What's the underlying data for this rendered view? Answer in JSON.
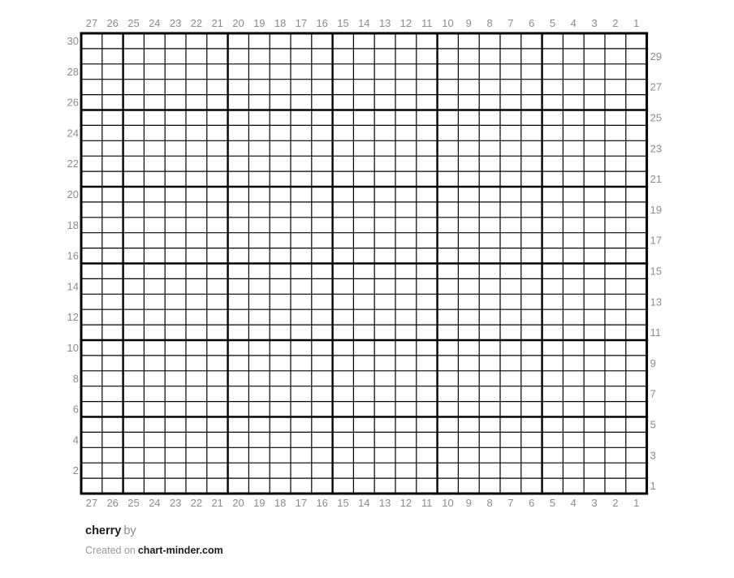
{
  "chart_data": {
    "type": "heatmap",
    "title": "cherry",
    "columns": 27,
    "rows": 30,
    "bold_grid_every": 5,
    "grid_on": true,
    "filled_cells": [],
    "column_labels_top": [
      "27",
      "26",
      "25",
      "24",
      "23",
      "22",
      "21",
      "20",
      "19",
      "18",
      "17",
      "16",
      "15",
      "14",
      "13",
      "12",
      "11",
      "10",
      "9",
      "8",
      "7",
      "6",
      "5",
      "4",
      "3",
      "2",
      "1"
    ],
    "column_labels_bottom": [
      "27",
      "26",
      "25",
      "24",
      "23",
      "22",
      "21",
      "20",
      "19",
      "18",
      "17",
      "16",
      "15",
      "14",
      "13",
      "12",
      "11",
      "10",
      "9",
      "8",
      "7",
      "6",
      "5",
      "4",
      "3",
      "2",
      "1"
    ],
    "row_labels_left": [
      "30",
      "28",
      "26",
      "24",
      "22",
      "20",
      "18",
      "16",
      "14",
      "12",
      "10",
      "8",
      "6",
      "4",
      "2"
    ],
    "row_labels_right": [
      "29",
      "27",
      "25",
      "23",
      "21",
      "19",
      "17",
      "15",
      "13",
      "11",
      "9",
      "7",
      "5",
      "3",
      "1"
    ],
    "colors": {
      "grid_line": "#000000",
      "label_text": "#8c8c8c",
      "cell_fill": "#ffffff"
    }
  },
  "footer": {
    "title": "cherry",
    "byline": "by",
    "created_prefix": "Created on",
    "site": "chart-minder.com"
  }
}
